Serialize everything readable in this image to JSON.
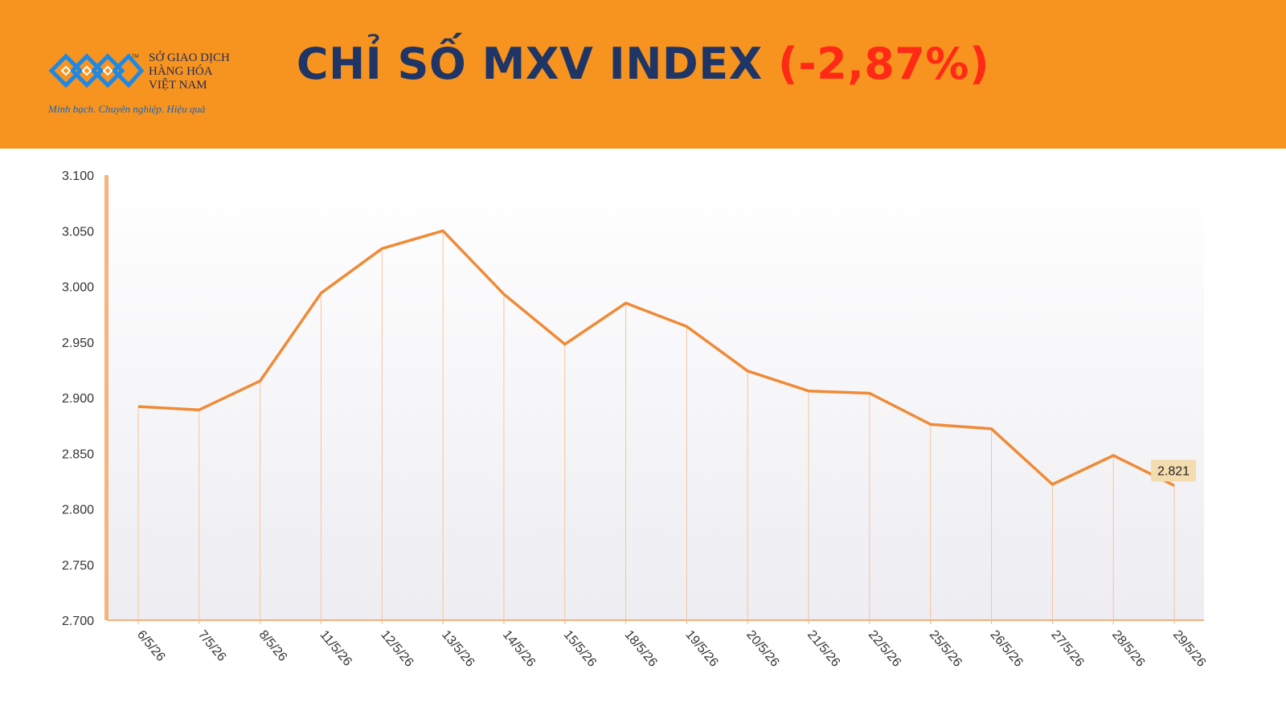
{
  "header": {
    "title": "CHỈ SỐ MXV INDEX",
    "change": "(-2,87%)",
    "logo": {
      "lines": [
        "SỞ GIAO DỊCH",
        "HÀNG HÓA",
        "VIỆT NAM"
      ],
      "slogan": "Minh bạch. Chuyên nghiệp. Hiệu quả",
      "tm": "TM"
    }
  },
  "colors": {
    "banner": "#f7941f",
    "title": "#1f3565",
    "change": "#ff2a16",
    "line": "#f08a36",
    "value_label_bg": "#f3dcae"
  },
  "chart_data": {
    "type": "area",
    "categories": [
      "6/5/26",
      "7/5/26",
      "8/5/26",
      "11/5/26",
      "12/5/26",
      "13/5/26",
      "14/5/26",
      "15/5/26",
      "18/5/26",
      "19/5/26",
      "20/5/26",
      "21/5/26",
      "22/5/26",
      "25/5/26",
      "26/5/26",
      "27/5/26",
      "28/5/26",
      "29/5/26"
    ],
    "values": [
      2892,
      2889,
      2915,
      2994,
      3034,
      3050,
      2993,
      2948,
      2985,
      2964,
      2924,
      2906,
      2904,
      2876,
      2872,
      2822,
      2848,
      2821
    ],
    "ylim": [
      2700,
      3100
    ],
    "yticks": [
      2700,
      2750,
      2800,
      2850,
      2900,
      2950,
      3000,
      3050,
      3100
    ],
    "ytick_labels": [
      "2.700",
      "2.750",
      "2.800",
      "2.850",
      "2.900",
      "2.950",
      "3.000",
      "3.050",
      "3.100"
    ],
    "last_value_label": "2.821",
    "grid": false,
    "drop_lines": true
  }
}
